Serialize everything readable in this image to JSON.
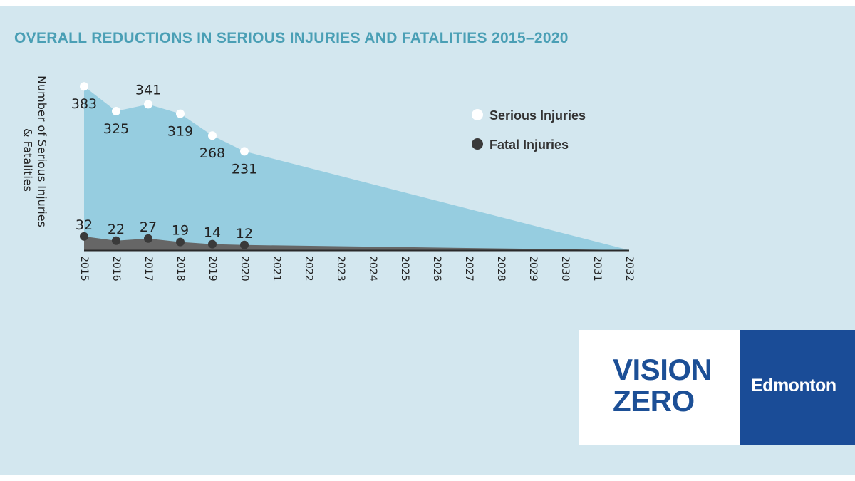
{
  "title": "OVERALL REDUCTIONS IN SERIOUS INJURIES AND FATALITIES 2015–2020",
  "logos": {
    "vision_line1": "VISION",
    "vision_line2": "ZERO",
    "city": "Edmonton"
  },
  "colors": {
    "background": "#d3e7ef",
    "title": "#4a9fb5",
    "serious_area": "#96cde0",
    "fatal_area": "#666666",
    "serious_marker": "#ffffff",
    "fatal_marker": "#3a3a3a",
    "brand_blue": "#1a4c97"
  },
  "chart_data": {
    "type": "area",
    "title": "OVERALL REDUCTIONS IN SERIOUS INJURIES AND FATALITIES 2015–2020",
    "ylabel_lines": [
      "Number of Serious Injuries",
      "& Fatalities"
    ],
    "xlabel": "",
    "categories": [
      "2015",
      "2016",
      "2017",
      "2018",
      "2019",
      "2020",
      "2021",
      "2022",
      "2023",
      "2024",
      "2025",
      "2026",
      "2027",
      "2028",
      "2029",
      "2030",
      "2031",
      "2032"
    ],
    "ylim": [
      0,
      400
    ],
    "legend": [
      "Serious Injuries",
      "Fatal Injuries"
    ],
    "legend_position": "top-right",
    "series": [
      {
        "name": "Serious Injuries",
        "x": [
          2015,
          2016,
          2017,
          2018,
          2019,
          2020
        ],
        "values": [
          383,
          325,
          341,
          319,
          268,
          231
        ],
        "target": {
          "year": 2032,
          "value": 0
        }
      },
      {
        "name": "Fatal Injuries",
        "x": [
          2015,
          2016,
          2017,
          2018,
          2019,
          2020
        ],
        "values": [
          32,
          22,
          27,
          19,
          14,
          12
        ],
        "target": {
          "year": 2032,
          "value": 0
        }
      }
    ]
  }
}
